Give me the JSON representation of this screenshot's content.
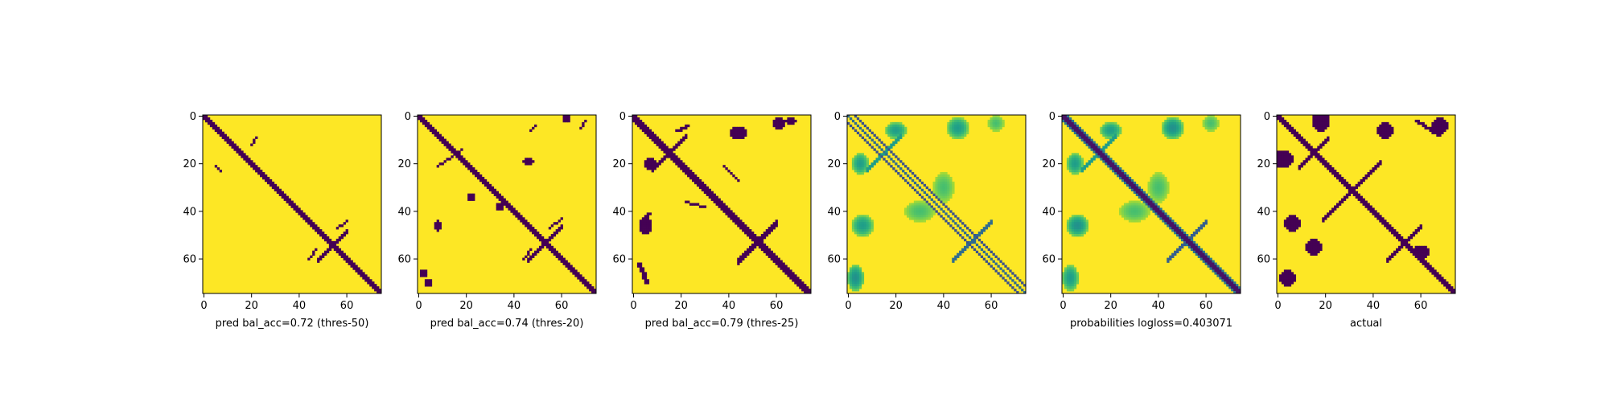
{
  "figure": {
    "background": "#ffffff"
  },
  "chart_data": [
    {
      "type": "heatmap",
      "title": "",
      "xlabel": "pred bal_acc=0.72 (thres-50)",
      "ylabel": "",
      "xlim": [
        0,
        74
      ],
      "ylim": [
        74,
        0
      ],
      "xticks": [
        0,
        20,
        40,
        60
      ],
      "yticks": [
        0,
        20,
        40,
        60
      ],
      "colormap": "viridis",
      "binary": true,
      "colors": {
        "low": "#440154",
        "high": "#fde725"
      },
      "features": [
        {
          "kind": "diagonal",
          "from": 0,
          "to": 74,
          "width": 3
        },
        {
          "kind": "antidiagonal",
          "center": [
            54,
            54
          ],
          "half_length": 6,
          "width": 2
        },
        {
          "kind": "streak",
          "from": [
            21,
            5
          ],
          "to": [
            23,
            7
          ],
          "width": 1
        },
        {
          "kind": "streak",
          "from": [
            12,
            20
          ],
          "to": [
            9,
            22
          ],
          "width": 1
        },
        {
          "kind": "streak",
          "from": [
            47,
            56
          ],
          "to": [
            44,
            60
          ],
          "width": 1
        },
        {
          "kind": "streak",
          "from": [
            56,
            47
          ],
          "to": [
            60,
            44
          ],
          "width": 1
        }
      ]
    },
    {
      "type": "heatmap",
      "title": "",
      "xlabel": "pred bal_acc=0.74 (thres-20)",
      "ylabel": "",
      "xlim": [
        0,
        74
      ],
      "ylim": [
        74,
        0
      ],
      "xticks": [
        0,
        20,
        40,
        60
      ],
      "yticks": [
        0,
        20,
        40,
        60
      ],
      "colormap": "viridis",
      "binary": true,
      "colors": {
        "low": "#440154",
        "high": "#fde725"
      },
      "features": [
        {
          "kind": "diagonal",
          "from": 0,
          "to": 74,
          "width": 3
        },
        {
          "kind": "antidiagonal",
          "center": [
            53,
            53
          ],
          "half_length": 7,
          "width": 2
        },
        {
          "kind": "streak",
          "from": [
            21,
            8
          ],
          "to": [
            14,
            18
          ],
          "width": 1
        },
        {
          "kind": "streak",
          "from": [
            6,
            47
          ],
          "to": [
            4,
            49
          ],
          "width": 1
        },
        {
          "kind": "streak",
          "from": [
            47,
            55
          ],
          "to": [
            43,
            60
          ],
          "width": 1
        },
        {
          "kind": "streak",
          "from": [
            56,
            47
          ],
          "to": [
            60,
            44
          ],
          "width": 1
        },
        {
          "kind": "streak",
          "from": [
            5,
            68
          ],
          "to": [
            2,
            70
          ],
          "width": 1
        },
        {
          "kind": "blob",
          "center": [
            46,
            8
          ],
          "size": [
            2,
            1
          ]
        },
        {
          "kind": "blob",
          "center": [
            19,
            46
          ],
          "size": [
            1,
            2
          ]
        },
        {
          "kind": "blob",
          "center": [
            70,
            4
          ],
          "size": [
            1,
            1
          ]
        },
        {
          "kind": "blob",
          "center": [
            66,
            2
          ],
          "size": [
            1,
            1
          ]
        },
        {
          "kind": "blob",
          "center": [
            1,
            62
          ],
          "size": [
            1,
            1
          ]
        },
        {
          "kind": "blob",
          "center": [
            34,
            22
          ],
          "size": [
            1,
            1
          ]
        },
        {
          "kind": "blob",
          "center": [
            38,
            34
          ],
          "size": [
            1,
            1
          ]
        }
      ]
    },
    {
      "type": "heatmap",
      "title": "",
      "xlabel": "pred bal_acc=0.79 (thres-25)",
      "ylabel": "",
      "xlim": [
        0,
        74
      ],
      "ylim": [
        74,
        0
      ],
      "xticks": [
        0,
        20,
        40,
        60
      ],
      "yticks": [
        0,
        20,
        40,
        60
      ],
      "colormap": "viridis",
      "binary": true,
      "colors": {
        "low": "#440154",
        "high": "#fde725"
      },
      "features": [
        {
          "kind": "diagonal",
          "from": 0,
          "to": 74,
          "width": 4
        },
        {
          "kind": "antidiagonal",
          "center": [
            15,
            15
          ],
          "half_length": 7,
          "width": 2
        },
        {
          "kind": "antidiagonal",
          "center": [
            52,
            52
          ],
          "half_length": 8,
          "width": 3
        },
        {
          "kind": "streak",
          "from": [
            44,
            3
          ],
          "to": [
            41,
            6
          ],
          "width": 2
        },
        {
          "kind": "streak",
          "from": [
            6,
            18
          ],
          "to": [
            4,
            22
          ],
          "width": 2
        },
        {
          "kind": "streak",
          "from": [
            21,
            38
          ],
          "to": [
            27,
            44
          ],
          "width": 1
        },
        {
          "kind": "streak",
          "from": [
            36,
            22
          ],
          "to": [
            38,
            30
          ],
          "width": 1
        },
        {
          "kind": "streak",
          "from": [
            62,
            2
          ],
          "to": [
            70,
            5
          ],
          "width": 2
        },
        {
          "kind": "blob",
          "center": [
            46,
            5
          ],
          "size": [
            3,
            2
          ]
        },
        {
          "kind": "blob",
          "center": [
            7,
            44
          ],
          "size": [
            2,
            3
          ]
        },
        {
          "kind": "blob",
          "center": [
            3,
            61
          ],
          "size": [
            2,
            2
          ]
        },
        {
          "kind": "blob",
          "center": [
            20,
            7
          ],
          "size": [
            2,
            2
          ]
        },
        {
          "kind": "blob",
          "center": [
            2,
            66
          ],
          "size": [
            1,
            2
          ]
        }
      ]
    },
    {
      "type": "heatmap",
      "title": "",
      "xlabel": "",
      "ylabel": "",
      "xlim": [
        0,
        74
      ],
      "ylim": [
        74,
        0
      ],
      "xticks": [
        0,
        20,
        40,
        60
      ],
      "yticks": [
        0,
        20,
        40,
        60
      ],
      "colormap": "viridis",
      "binary": false,
      "colors": {
        "low": "#440154",
        "high": "#fde725"
      },
      "features": [
        {
          "kind": "diagonal",
          "from": 0,
          "to": 74,
          "width": 1,
          "value": 0.35
        },
        {
          "kind": "diagonal",
          "offset": 3,
          "from": 0,
          "to": 71,
          "width": 1,
          "value": 0.25
        },
        {
          "kind": "diagonal",
          "offset": -3,
          "from": 0,
          "to": 71,
          "width": 1,
          "value": 0.25
        },
        {
          "kind": "antidiagonal",
          "center": [
            52,
            52
          ],
          "half_length": 8,
          "width": 2,
          "value": 0.35
        },
        {
          "kind": "antidiagonal",
          "center": [
            15,
            15
          ],
          "half_length": 7,
          "width": 2,
          "value": 0.55
        },
        {
          "kind": "blob",
          "center": [
            20,
            5
          ],
          "size": [
            4,
            3
          ],
          "value": 0.55
        },
        {
          "kind": "blob",
          "center": [
            46,
            6
          ],
          "size": [
            4,
            4
          ],
          "value": 0.55
        },
        {
          "kind": "blob",
          "center": [
            5,
            46
          ],
          "size": [
            4,
            4
          ],
          "value": 0.55
        },
        {
          "kind": "blob",
          "center": [
            6,
            20
          ],
          "size": [
            3,
            4
          ],
          "value": 0.55
        },
        {
          "kind": "blob",
          "center": [
            30,
            40
          ],
          "size": [
            6,
            4
          ],
          "value": 0.7
        },
        {
          "kind": "blob",
          "center": [
            40,
            30
          ],
          "size": [
            4,
            6
          ],
          "value": 0.7
        },
        {
          "kind": "blob",
          "center": [
            68,
            3
          ],
          "size": [
            5,
            3
          ],
          "value": 0.5
        },
        {
          "kind": "blob",
          "center": [
            3,
            62
          ],
          "size": [
            3,
            3
          ],
          "value": 0.7
        }
      ]
    },
    {
      "type": "heatmap",
      "title": "",
      "xlabel": "probabilities logloss=0.403071",
      "ylabel": "",
      "xlim": [
        0,
        74
      ],
      "ylim": [
        74,
        0
      ],
      "xticks": [
        0,
        20,
        40,
        60
      ],
      "yticks": [
        0,
        20,
        40,
        60
      ],
      "colormap": "viridis",
      "binary": false,
      "colors": {
        "low": "#440154",
        "high": "#fde725"
      },
      "features": [
        {
          "kind": "diagonal",
          "from": 0,
          "to": 74,
          "width": 3,
          "value": 0.05
        },
        {
          "kind": "diagonal",
          "offset": 2,
          "from": 0,
          "to": 72,
          "width": 1,
          "value": 0.4
        },
        {
          "kind": "diagonal",
          "offset": -2,
          "from": 0,
          "to": 72,
          "width": 1,
          "value": 0.4
        },
        {
          "kind": "antidiagonal",
          "center": [
            52,
            52
          ],
          "half_length": 8,
          "width": 2,
          "value": 0.3
        },
        {
          "kind": "antidiagonal",
          "center": [
            15,
            15
          ],
          "half_length": 7,
          "width": 2,
          "value": 0.55
        },
        {
          "kind": "blob",
          "center": [
            20,
            5
          ],
          "size": [
            4,
            3
          ],
          "value": 0.55
        },
        {
          "kind": "blob",
          "center": [
            46,
            6
          ],
          "size": [
            4,
            4
          ],
          "value": 0.5
        },
        {
          "kind": "blob",
          "center": [
            5,
            46
          ],
          "size": [
            4,
            4
          ],
          "value": 0.5
        },
        {
          "kind": "blob",
          "center": [
            6,
            20
          ],
          "size": [
            3,
            4
          ],
          "value": 0.55
        },
        {
          "kind": "blob",
          "center": [
            30,
            40
          ],
          "size": [
            6,
            4
          ],
          "value": 0.7
        },
        {
          "kind": "blob",
          "center": [
            40,
            30
          ],
          "size": [
            4,
            6
          ],
          "value": 0.7
        },
        {
          "kind": "blob",
          "center": [
            68,
            3
          ],
          "size": [
            5,
            3
          ],
          "value": 0.55
        },
        {
          "kind": "blob",
          "center": [
            3,
            62
          ],
          "size": [
            3,
            3
          ],
          "value": 0.7
        }
      ]
    },
    {
      "type": "heatmap",
      "title": "",
      "xlabel": "actual",
      "ylabel": "",
      "xlim": [
        0,
        74
      ],
      "ylim": [
        74,
        0
      ],
      "xticks": [
        0,
        20,
        40,
        60
      ],
      "yticks": [
        0,
        20,
        40,
        60
      ],
      "colormap": "viridis",
      "binary": true,
      "colors": {
        "low": "#440154",
        "high": "#fde725"
      },
      "features": [
        {
          "kind": "diagonal",
          "from": 0,
          "to": 74,
          "width": 3
        },
        {
          "kind": "antidiagonal",
          "center": [
            31,
            31
          ],
          "half_length": 12,
          "width": 2
        },
        {
          "kind": "antidiagonal",
          "center": [
            53,
            53
          ],
          "half_length": 7,
          "width": 2
        },
        {
          "kind": "antidiagonal",
          "center": [
            15,
            15
          ],
          "half_length": 6,
          "width": 2
        },
        {
          "kind": "streak",
          "from": [
            2,
            58
          ],
          "to": [
            8,
            67
          ],
          "width": 2
        },
        {
          "kind": "blob",
          "center": [
            2,
            18
          ],
          "size": [
            4,
            3
          ]
        },
        {
          "kind": "blob",
          "center": [
            18,
            2
          ],
          "size": [
            3,
            4
          ]
        },
        {
          "kind": "blob",
          "center": [
            45,
            6
          ],
          "size": [
            3,
            3
          ]
        },
        {
          "kind": "blob",
          "center": [
            6,
            45
          ],
          "size": [
            3,
            3
          ]
        },
        {
          "kind": "blob",
          "center": [
            55,
            15
          ],
          "size": [
            3,
            3
          ]
        },
        {
          "kind": "blob",
          "center": [
            68,
            4
          ],
          "size": [
            3,
            3
          ]
        },
        {
          "kind": "blob",
          "center": [
            4,
            68
          ],
          "size": [
            3,
            3
          ]
        },
        {
          "kind": "blob",
          "center": [
            57,
            60
          ],
          "size": [
            2,
            3
          ]
        }
      ]
    }
  ]
}
